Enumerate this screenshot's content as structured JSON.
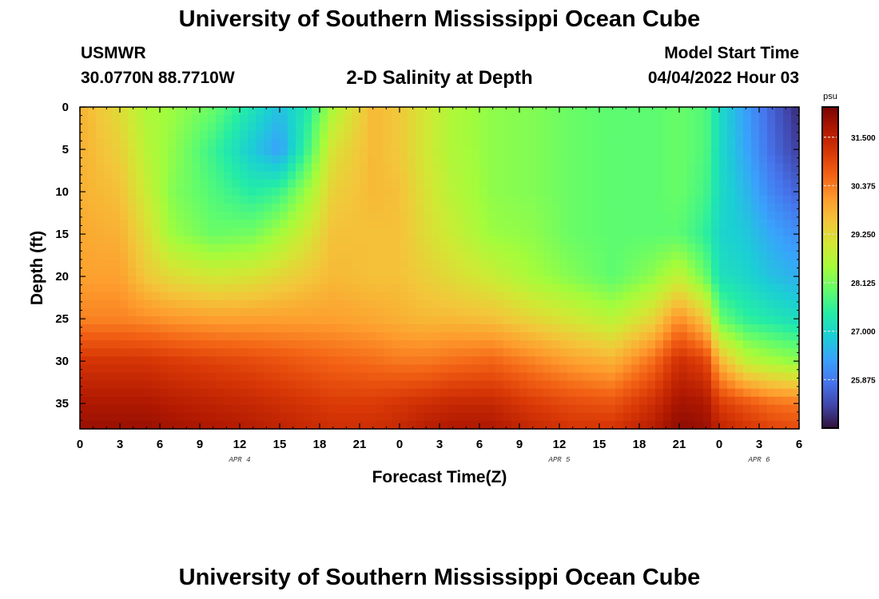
{
  "header": {
    "title": "University of Southern Mississippi Ocean Cube",
    "station": "USMWR",
    "coordinates": "30.0770N  88.7710W",
    "plot_title": "2-D Salinity at Depth",
    "model_start_label": "Model Start Time",
    "model_start_value": "04/04/2022 Hour 03"
  },
  "footer": {
    "title": "University of Southern Mississippi Ocean Cube"
  },
  "colors": {
    "colormap": [
      "#30123b",
      "#4145ab",
      "#4675ed",
      "#39a2fc",
      "#1bcfd4",
      "#24eca6",
      "#61fc6c",
      "#a4fc3b",
      "#d1e834",
      "#f3c63a",
      "#fe9b2d",
      "#f36315",
      "#d93806",
      "#b11901",
      "#7a0403"
    ],
    "axis": "#000000"
  },
  "chart_data": {
    "type": "heatmap",
    "title": "2-D Salinity at Depth",
    "xlabel": "Forecast Time(Z)",
    "ylabel": "Depth (ft)",
    "x_unit": "hours since Apr 4 00Z",
    "xlim": [
      0,
      54
    ],
    "ylim": [
      38,
      0
    ],
    "x_ticks": [
      0,
      3,
      6,
      9,
      12,
      15,
      18,
      21,
      24,
      27,
      30,
      33,
      36,
      39,
      42,
      45,
      48,
      51,
      54
    ],
    "x_tick_labels": [
      "0",
      "3",
      "6",
      "9",
      "12",
      "15",
      "18",
      "21",
      "0",
      "3",
      "6",
      "9",
      "12",
      "15",
      "18",
      "21",
      "0",
      "3",
      "6"
    ],
    "y_ticks": [
      0,
      5,
      10,
      15,
      20,
      25,
      30,
      35
    ],
    "y_tick_labels": [
      "0",
      "5",
      "10",
      "15",
      "20",
      "25",
      "30",
      "35"
    ],
    "day_labels": [
      {
        "x": 12,
        "label": "APR 4"
      },
      {
        "x": 36,
        "label": "APR 5"
      },
      {
        "x": 51,
        "label": "APR 6"
      }
    ],
    "colorbar": {
      "unit": "psu",
      "range": [
        24.75,
        32.2
      ],
      "ticks": [
        25.875,
        27.0,
        28.125,
        29.25,
        30.375,
        31.5
      ],
      "tick_labels": [
        "25.875",
        "27.000",
        "28.125",
        "29.250",
        "30.375",
        "31.500"
      ]
    },
    "depths": [
      0,
      5,
      10,
      15,
      20,
      25,
      30,
      35,
      38
    ],
    "profiles": [
      {
        "hour": 0,
        "salinity": [
          29.8,
          29.8,
          29.8,
          29.9,
          30.0,
          30.3,
          31.2,
          31.7,
          31.9
        ]
      },
      {
        "hour": 3,
        "salinity": [
          29.2,
          29.4,
          29.6,
          29.8,
          30.0,
          30.3,
          31.2,
          31.7,
          31.9
        ]
      },
      {
        "hour": 5,
        "salinity": [
          28.6,
          28.7,
          28.9,
          29.2,
          29.5,
          30.2,
          31.2,
          31.7,
          31.9
        ]
      },
      {
        "hour": 7,
        "salinity": [
          28.4,
          28.3,
          28.2,
          28.4,
          29.2,
          30.1,
          31.1,
          31.6,
          31.8
        ]
      },
      {
        "hour": 10,
        "salinity": [
          28.0,
          27.6,
          27.8,
          28.0,
          29.0,
          30.0,
          31.0,
          31.5,
          31.7
        ]
      },
      {
        "hour": 13,
        "salinity": [
          27.2,
          26.8,
          27.4,
          28.1,
          29.1,
          30.0,
          30.9,
          31.4,
          31.6
        ]
      },
      {
        "hour": 15,
        "salinity": [
          26.7,
          26.3,
          27.6,
          28.5,
          29.3,
          30.0,
          30.8,
          31.3,
          31.5
        ]
      },
      {
        "hour": 17,
        "salinity": [
          27.3,
          27.6,
          28.4,
          29.0,
          29.5,
          30.0,
          30.7,
          31.2,
          31.4
        ]
      },
      {
        "hour": 19,
        "salinity": [
          28.6,
          29.1,
          29.4,
          29.6,
          29.7,
          30.0,
          30.6,
          31.1,
          31.3
        ]
      },
      {
        "hour": 22,
        "salinity": [
          29.7,
          29.7,
          29.7,
          29.6,
          29.6,
          29.9,
          30.5,
          31.1,
          31.3
        ]
      },
      {
        "hour": 24,
        "salinity": [
          29.5,
          29.5,
          29.6,
          29.6,
          29.6,
          29.8,
          30.4,
          31.2,
          31.4
        ]
      },
      {
        "hour": 26,
        "salinity": [
          29.0,
          29.0,
          29.1,
          29.2,
          29.4,
          29.7,
          30.4,
          31.3,
          31.6
        ]
      },
      {
        "hour": 28,
        "salinity": [
          28.6,
          28.6,
          28.7,
          28.9,
          29.2,
          29.7,
          30.5,
          31.4,
          31.7
        ]
      },
      {
        "hour": 31,
        "salinity": [
          28.3,
          28.3,
          28.3,
          28.4,
          28.9,
          29.6,
          30.6,
          31.4,
          31.7
        ]
      },
      {
        "hour": 34,
        "salinity": [
          28.2,
          28.2,
          28.2,
          28.3,
          28.5,
          29.3,
          30.3,
          31.1,
          31.4
        ]
      },
      {
        "hour": 37,
        "salinity": [
          28.0,
          28.0,
          28.0,
          28.0,
          28.2,
          29.0,
          30.0,
          30.9,
          31.2
        ]
      },
      {
        "hour": 40,
        "salinity": [
          27.9,
          27.9,
          27.9,
          27.9,
          27.9,
          28.7,
          29.8,
          30.8,
          31.2
        ]
      },
      {
        "hour": 43,
        "salinity": [
          27.9,
          27.9,
          27.9,
          27.9,
          28.3,
          29.3,
          30.5,
          31.3,
          31.6
        ]
      },
      {
        "hour": 45,
        "salinity": [
          28.0,
          28.0,
          28.0,
          27.9,
          28.8,
          30.2,
          31.3,
          31.8,
          32.0
        ]
      },
      {
        "hour": 47,
        "salinity": [
          27.8,
          27.8,
          27.7,
          27.5,
          28.0,
          29.5,
          31.0,
          31.7,
          31.9
        ]
      },
      {
        "hour": 48,
        "salinity": [
          27.1,
          27.1,
          27.1,
          27.0,
          27.2,
          28.0,
          29.8,
          31.1,
          31.5
        ]
      },
      {
        "hour": 50,
        "salinity": [
          26.3,
          26.4,
          26.6,
          26.8,
          27.0,
          27.5,
          28.8,
          30.8,
          31.2
        ]
      },
      {
        "hour": 52,
        "salinity": [
          25.6,
          25.7,
          26.0,
          26.4,
          26.7,
          27.3,
          28.5,
          30.5,
          31.0
        ]
      },
      {
        "hour": 54,
        "salinity": [
          25.0,
          25.2,
          25.6,
          26.1,
          26.5,
          27.1,
          28.3,
          30.4,
          30.9
        ]
      }
    ]
  }
}
